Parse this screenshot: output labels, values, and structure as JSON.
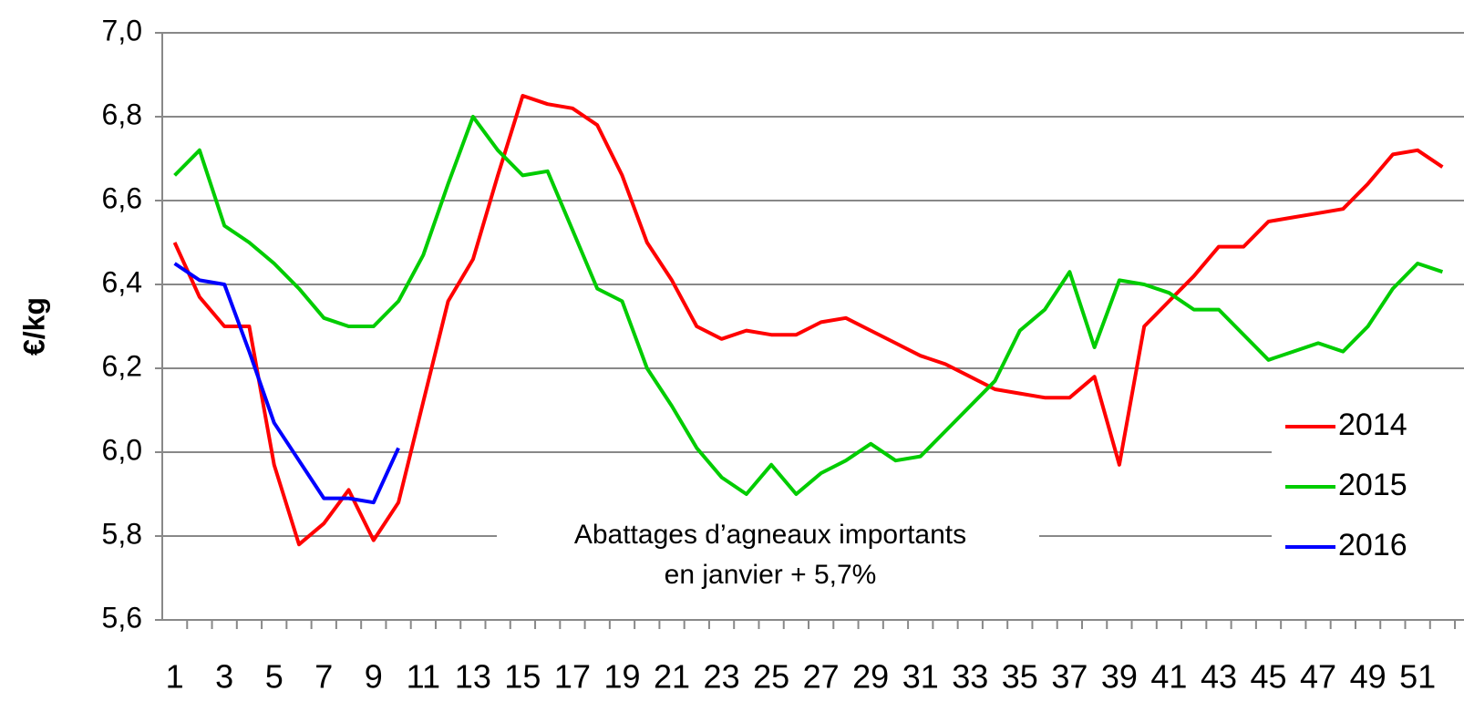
{
  "chart_data": {
    "type": "line",
    "y_label": "€/kg",
    "annotation": [
      "Abattages d’agneaux importants",
      "en janvier + 5,7%"
    ],
    "categories": [
      "1",
      null,
      "3",
      null,
      "5",
      null,
      "7",
      null,
      "9",
      null,
      "11",
      null,
      "13",
      null,
      "15",
      null,
      "17",
      null,
      "19",
      null,
      "21",
      null,
      "23",
      null,
      "25",
      null,
      "27",
      null,
      "29",
      null,
      "31",
      null,
      "33",
      null,
      "35",
      null,
      "37",
      null,
      "39",
      null,
      "41",
      null,
      "43",
      null,
      "45",
      null,
      "47",
      null,
      "49",
      null,
      "51",
      null
    ],
    "series": [
      {
        "name": "2014",
        "color": "#ff0000",
        "values": [
          6.5,
          6.37,
          6.3,
          6.3,
          5.97,
          5.78,
          5.83,
          5.91,
          5.79,
          5.88,
          6.12,
          6.36,
          6.46,
          6.66,
          6.85,
          6.83,
          6.82,
          6.78,
          6.66,
          6.5,
          6.41,
          6.3,
          6.27,
          6.29,
          6.28,
          6.28,
          6.31,
          6.32,
          6.29,
          6.26,
          6.23,
          6.21,
          6.18,
          6.15,
          6.14,
          6.13,
          6.13,
          6.18,
          5.97,
          6.3,
          6.36,
          6.42,
          6.49,
          6.49,
          6.55,
          6.56,
          6.57,
          6.58,
          6.64,
          6.71,
          6.72,
          6.68
        ]
      },
      {
        "name": "2015",
        "color": "#00cc00",
        "values": [
          6.66,
          6.72,
          6.54,
          6.5,
          6.45,
          6.39,
          6.32,
          6.3,
          6.3,
          6.36,
          6.47,
          6.64,
          6.8,
          6.72,
          6.66,
          6.67,
          6.53,
          6.39,
          6.36,
          6.2,
          6.11,
          6.01,
          5.94,
          5.9,
          5.97,
          5.9,
          5.95,
          5.98,
          6.02,
          5.98,
          5.99,
          6.05,
          6.11,
          6.17,
          6.29,
          6.34,
          6.43,
          6.25,
          6.41,
          6.4,
          6.38,
          6.34,
          6.34,
          6.28,
          6.22,
          6.24,
          6.26,
          6.24,
          6.3,
          6.39,
          6.45,
          6.43
        ]
      },
      {
        "name": "2016",
        "color": "#0000ff",
        "values": [
          6.45,
          6.41,
          6.4,
          6.24,
          6.07,
          5.98,
          5.89,
          5.89,
          5.88,
          6.01,
          null,
          null,
          null,
          null,
          null,
          null,
          null,
          null,
          null,
          null,
          null,
          null,
          null,
          null,
          null,
          null,
          null,
          null,
          null,
          null,
          null,
          null,
          null,
          null,
          null,
          null,
          null,
          null,
          null,
          null,
          null,
          null,
          null,
          null,
          null,
          null,
          null,
          null,
          null,
          null,
          null,
          null
        ]
      }
    ],
    "ylim": [
      5.6,
      7.0
    ],
    "yticks": [
      {
        "value": 5.6,
        "label": "5,6"
      },
      {
        "value": 5.8,
        "label": "5,8"
      },
      {
        "value": 6.0,
        "label": "6,0"
      },
      {
        "value": 6.2,
        "label": "6,2"
      },
      {
        "value": 6.4,
        "label": "6,4"
      },
      {
        "value": 6.6,
        "label": "6,6"
      },
      {
        "value": 6.8,
        "label": "6,8"
      },
      {
        "value": 7.0,
        "label": "7,0"
      }
    ],
    "grid": true
  }
}
